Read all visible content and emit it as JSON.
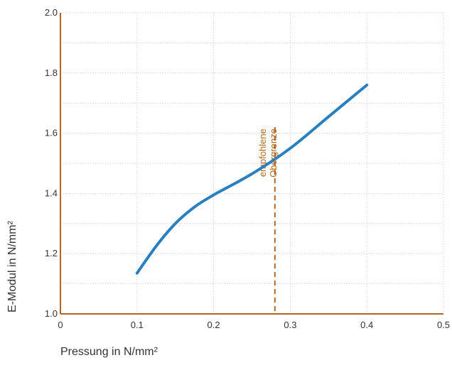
{
  "chart_data": {
    "type": "line",
    "title": "",
    "xlabel": "Pressung in N/mm²",
    "ylabel": "E-Modul in N/mm²",
    "xlim": [
      0,
      0.5
    ],
    "ylim": [
      1.0,
      2.0
    ],
    "x_ticks": [
      0,
      0.1,
      0.2,
      0.3,
      0.4,
      0.5
    ],
    "x_tick_labels": [
      "0",
      "0.1",
      "0.2",
      "0.3",
      "0.4",
      "0.5"
    ],
    "y_ticks": [
      1.0,
      1.2,
      1.4,
      1.6,
      1.8,
      2.0
    ],
    "y_tick_labels": [
      "1.0",
      "1.2",
      "1.4",
      "1.6",
      "1.8",
      "2.0"
    ],
    "grid": true,
    "grid_style": "dotted",
    "series": [
      {
        "name": "",
        "color": "#2a7fbf",
        "x": [
          0.1,
          0.125,
          0.15,
          0.175,
          0.2,
          0.25,
          0.3,
          0.35,
          0.4
        ],
        "y": [
          1.135,
          1.225,
          1.3,
          1.355,
          1.395,
          1.465,
          1.55,
          1.655,
          1.76
        ]
      }
    ],
    "annotations": [
      {
        "type": "vline",
        "x": 0.28,
        "y_top": 1.62,
        "style": "dashed",
        "color": "#b5651d",
        "label_lines": [
          "empfohlene",
          "Obergrenze"
        ]
      }
    ],
    "axis_color": "#b5651d"
  }
}
